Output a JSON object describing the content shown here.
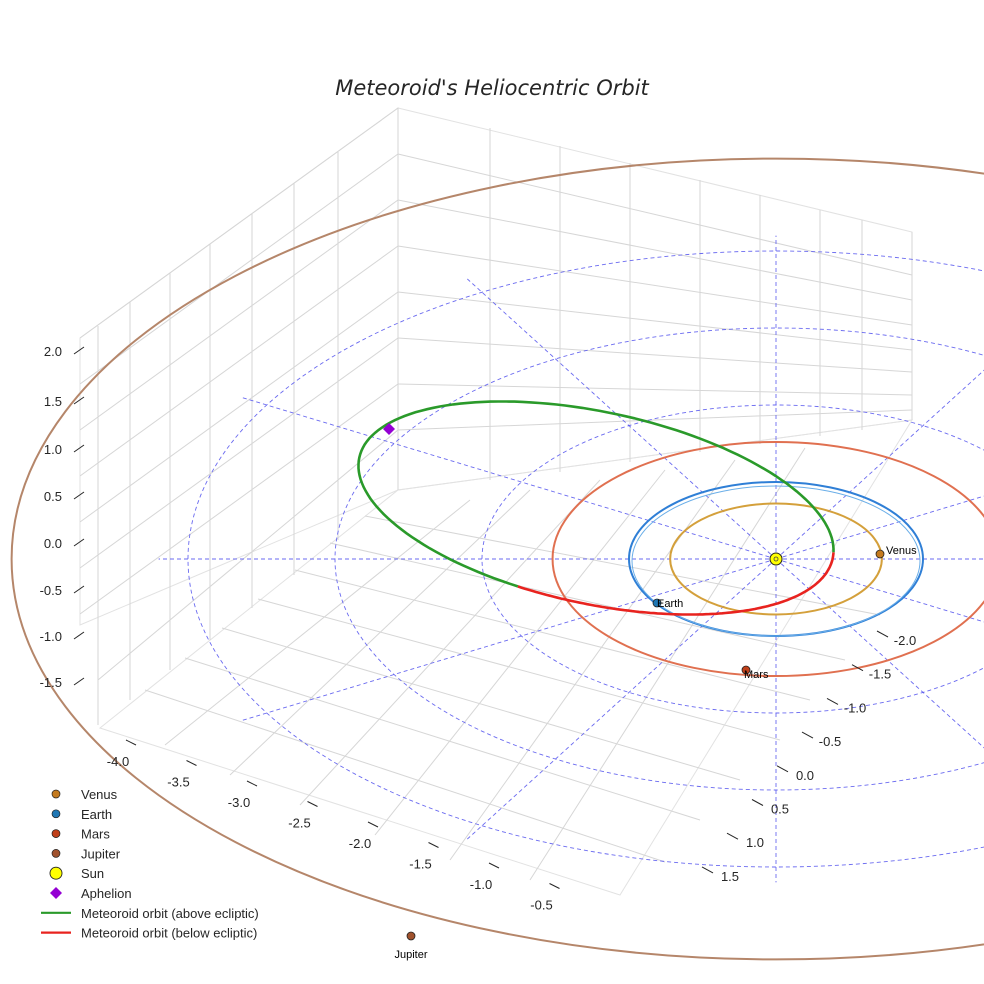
{
  "chart_data": {
    "type": "3d-orbit",
    "title": "Meteoroid's Heliocentric Orbit",
    "axes": {
      "x_ticks": [
        "-4.0",
        "-3.5",
        "-3.0",
        "-2.5",
        "-2.0",
        "-1.5",
        "-1.0",
        "-0.5"
      ],
      "y_ticks": [
        "-2.0",
        "-1.5",
        "-1.0",
        "-0.5",
        "0.0",
        "0.5",
        "1.0",
        "1.5"
      ],
      "z_ticks": [
        "2.0",
        "1.5",
        "1.0",
        "0.5",
        "0.0",
        "-0.5",
        "-1.0",
        "-1.5"
      ]
    },
    "bodies": [
      {
        "name": "Venus",
        "label": "Venus",
        "semi_major_axis_au": 0.72,
        "color": "#D4A03B",
        "marker_color": "#c47a1e"
      },
      {
        "name": "Earth",
        "label": "Earth",
        "semi_major_axis_au": 1.0,
        "color": "#2f7fd6",
        "marker_color": "#1f77b4"
      },
      {
        "name": "Mars",
        "label": "Mars",
        "semi_major_axis_au": 1.52,
        "color": "#e07050",
        "marker_color": "#c0401a"
      },
      {
        "name": "Jupiter",
        "label": "Jupiter",
        "semi_major_axis_au": 5.2,
        "color": "#b5866a",
        "marker_color": "#a0522d"
      }
    ],
    "sun": {
      "name": "Sun",
      "color": "#ffff00"
    },
    "aphelion": {
      "name": "Aphelion",
      "color": "#9400d3"
    },
    "meteoroid": {
      "above_label": "Meteoroid orbit (above ecliptic)",
      "above_color": "#2a9a2a",
      "below_label": "Meteoroid orbit (below ecliptic)",
      "below_color": "#e8231f"
    },
    "legend": [
      {
        "label": "Venus",
        "kind": "dot",
        "color": "#c47a1e"
      },
      {
        "label": "Earth",
        "kind": "dot",
        "color": "#1f77b4"
      },
      {
        "label": "Mars",
        "kind": "dot",
        "color": "#c0401a"
      },
      {
        "label": "Jupiter",
        "kind": "dot",
        "color": "#a0522d"
      },
      {
        "label": "Sun",
        "kind": "sun",
        "color": "#ffff00"
      },
      {
        "label": "Aphelion",
        "kind": "diamond",
        "color": "#9400d3"
      },
      {
        "label": "Meteoroid orbit (above ecliptic)",
        "kind": "line",
        "color": "#2a9a2a"
      },
      {
        "label": "Meteoroid orbit (below ecliptic)",
        "kind": "line",
        "color": "#e8231f"
      }
    ],
    "ecliptic_grid": {
      "ring_radii_au": [
        1,
        2,
        3,
        4
      ],
      "spokes": 12
    }
  }
}
